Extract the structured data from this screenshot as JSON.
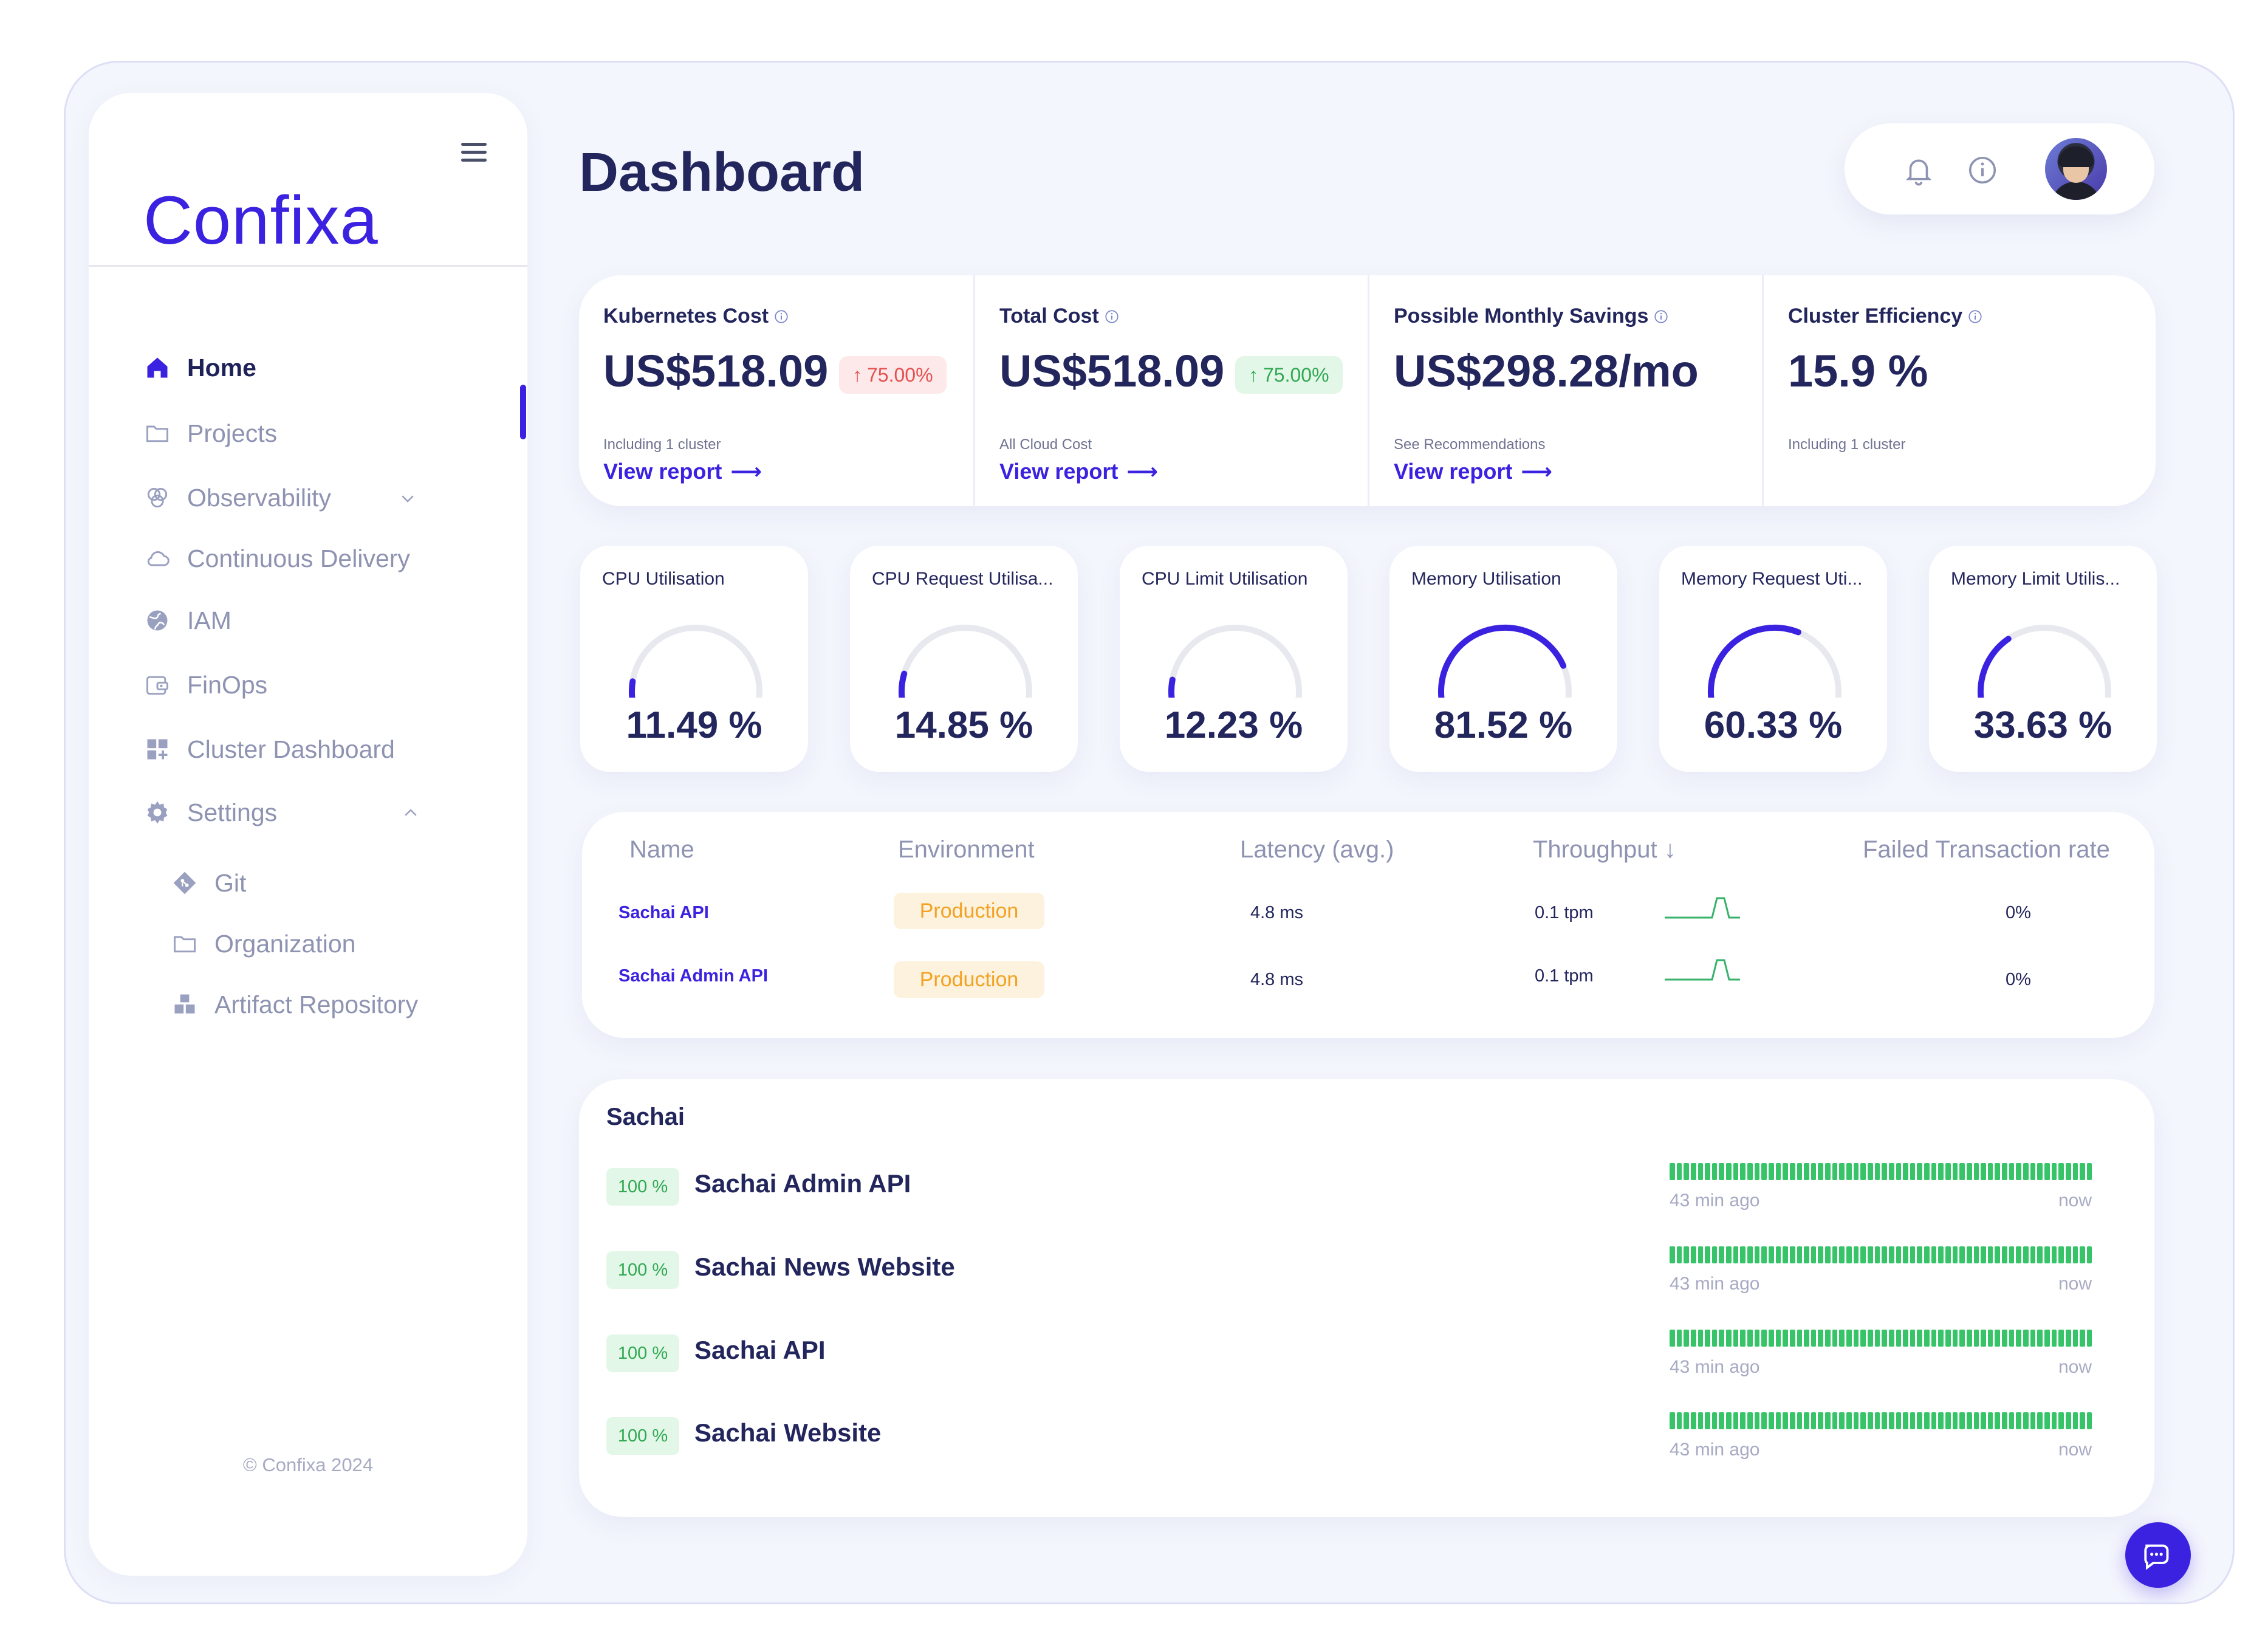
{
  "app": {
    "logo": "Confixa",
    "copyright": "© Confixa 2024"
  },
  "sidebar": {
    "items": [
      {
        "label": "Home",
        "icon": "home-icon"
      },
      {
        "label": "Projects",
        "icon": "folder-icon"
      },
      {
        "label": "Observability",
        "icon": "observability-icon"
      },
      {
        "label": "Continuous Delivery",
        "icon": "cloud-icon"
      },
      {
        "label": "IAM",
        "icon": "globe-icon"
      },
      {
        "label": "FinOps",
        "icon": "wallet-icon"
      },
      {
        "label": "Cluster Dashboard",
        "icon": "dashboard-grid-icon"
      },
      {
        "label": "Settings",
        "icon": "gear-icon"
      }
    ],
    "settings_items": [
      {
        "label": "Git",
        "icon": "git-icon"
      },
      {
        "label": "Organization",
        "icon": "folder-icon"
      },
      {
        "label": "Artifact Repository",
        "icon": "boxes-icon"
      }
    ]
  },
  "header": {
    "title": "Dashboard"
  },
  "cost_cards": [
    {
      "title": "Kubernetes Cost",
      "value": "US$518.09",
      "delta": "75.00%",
      "delta_color": "#e45050",
      "note": "Including 1 cluster",
      "link": "View report"
    },
    {
      "title": "Total Cost",
      "value": "US$518.09",
      "delta": "75.00%",
      "delta_color": "#31a852",
      "note": "All Cloud Cost",
      "link": "View report"
    },
    {
      "title": "Possible Monthly Savings",
      "value": "US$298.28/mo",
      "note": "See Recommendations",
      "link": "View report"
    },
    {
      "title": "Cluster Efficiency",
      "value": "15.9 %",
      "note": "Including 1 cluster"
    }
  ],
  "gauges": [
    {
      "label": "CPU Utilisation",
      "value": 11.49,
      "display": "11.49 %"
    },
    {
      "label": "CPU Request Utilisa...",
      "value": 14.85,
      "display": "14.85 %"
    },
    {
      "label": "CPU Limit Utilisation",
      "value": 12.23,
      "display": "12.23 %"
    },
    {
      "label": "Memory Utilisation",
      "value": 81.52,
      "display": "81.52 %"
    },
    {
      "label": "Memory Request Uti...",
      "value": 60.33,
      "display": "60.33 %"
    },
    {
      "label": "Memory Limit Utilis...",
      "value": 33.63,
      "display": "33.63 %"
    }
  ],
  "services_table": {
    "headers": [
      "Name",
      "Environment",
      "Latency (avg.)",
      "Throughput ↓",
      "Failed Transaction rate"
    ],
    "rows": [
      {
        "name": "Sachai API",
        "environment": "Production",
        "latency": "4.8 ms",
        "throughput": "0.1 tpm",
        "failed_rate": "0%"
      },
      {
        "name": "Sachai Admin API",
        "environment": "Production",
        "latency": "4.8 ms",
        "throughput": "0.1 tpm",
        "failed_rate": "0%"
      }
    ]
  },
  "uptime": {
    "heading": "Sachai",
    "start_label": "43 min ago",
    "end_label": "now",
    "rows": [
      {
        "percent": "100 %",
        "name": "Sachai Admin API"
      },
      {
        "percent": "100 %",
        "name": "Sachai News Website"
      },
      {
        "percent": "100 %",
        "name": "Sachai API"
      },
      {
        "percent": "100 %",
        "name": "Sachai Website"
      }
    ]
  },
  "colors": {
    "accent": "#3b22e0",
    "uptime_green": "#37c469",
    "production": "#f2a224"
  }
}
